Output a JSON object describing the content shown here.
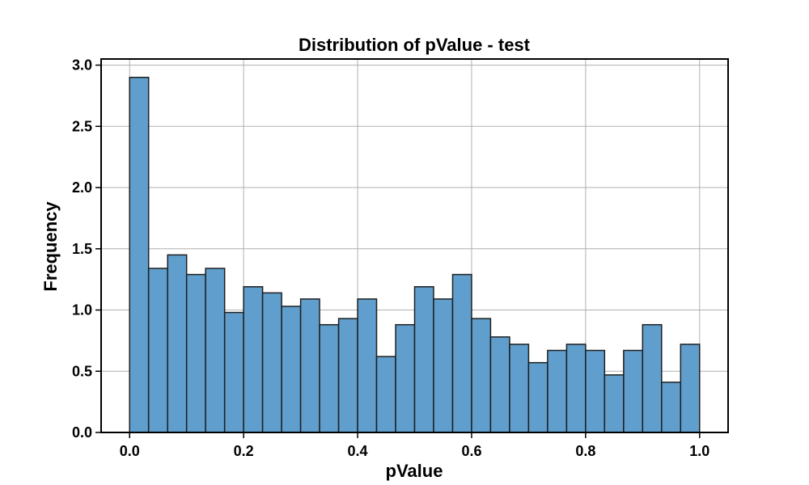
{
  "chart_data": {
    "type": "bar",
    "title": "Distribution of pValue - test",
    "xlabel": "pValue",
    "ylabel": "Frequency",
    "xlim": [
      -0.05,
      1.05
    ],
    "ylim": [
      0,
      3.05
    ],
    "grid": true,
    "bar_color": "#5f9ecd",
    "edge_color": "#1f1f1f",
    "grid_color": "#b0b0b0",
    "x_ticks": [
      "0.0",
      "0.2",
      "0.4",
      "0.6",
      "0.8",
      "1.0"
    ],
    "y_ticks": [
      "0.0",
      "0.5",
      "1.0",
      "1.5",
      "2.0",
      "2.5",
      "3.0"
    ],
    "bin_edges": [
      0.0,
      0.0333,
      0.0667,
      0.1,
      0.1333,
      0.1667,
      0.2,
      0.2333,
      0.2667,
      0.3,
      0.3333,
      0.3667,
      0.4,
      0.4333,
      0.4667,
      0.5,
      0.5333,
      0.5667,
      0.6,
      0.6333,
      0.6667,
      0.7,
      0.7333,
      0.7667,
      0.8,
      0.8333,
      0.8667,
      0.9,
      0.9333,
      0.9667,
      1.0
    ],
    "values": [
      2.9,
      1.34,
      1.45,
      1.29,
      1.34,
      0.98,
      1.19,
      1.14,
      1.03,
      1.09,
      0.88,
      0.93,
      1.09,
      0.62,
      0.88,
      1.19,
      1.09,
      1.29,
      0.93,
      0.78,
      0.72,
      0.57,
      0.67,
      0.72,
      0.67,
      0.47,
      0.67,
      0.88,
      0.41,
      0.72
    ]
  }
}
